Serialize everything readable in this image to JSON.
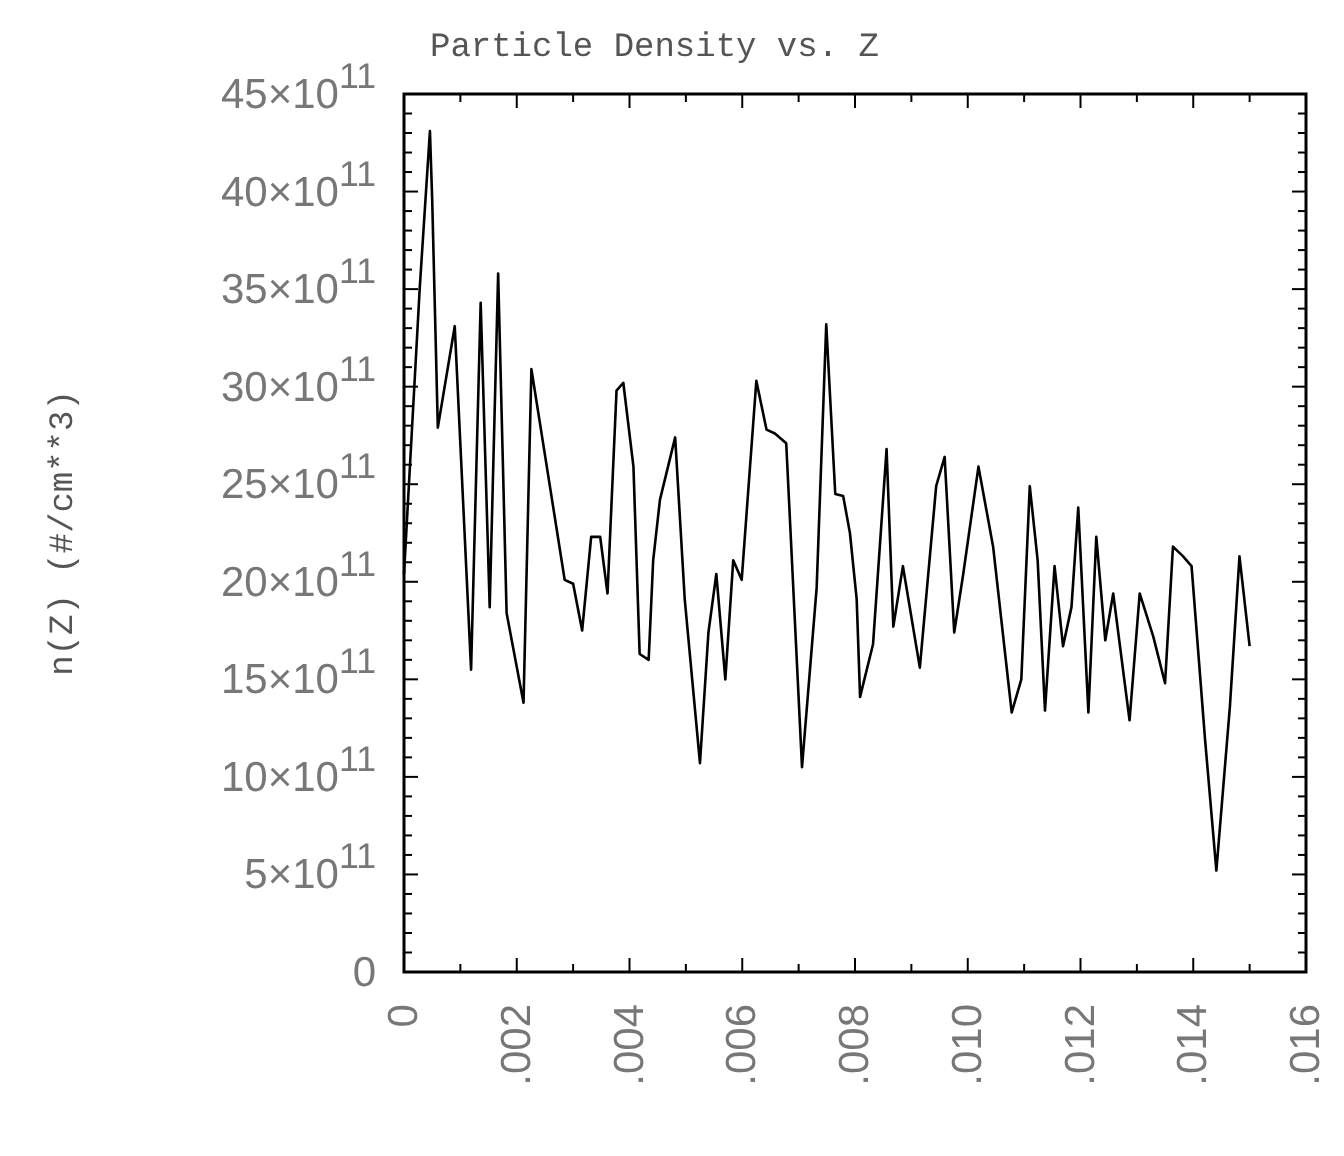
{
  "chart_data": {
    "type": "line",
    "title": "Particle Density vs. Z",
    "ylabel": "n(Z)  (#/cm**3)",
    "x": [
      0,
      0.00028,
      0.00046,
      0.0005,
      0.0006,
      0.0009,
      0.00119,
      0.00136,
      0.00152,
      0.00167,
      0.00182,
      0.00212,
      0.00226,
      0.00285,
      0.003,
      0.00316,
      0.00332,
      0.00348,
      0.00361,
      0.00377,
      0.00389,
      0.00407,
      0.00418,
      0.00434,
      0.00442,
      0.00454,
      0.00481,
      0.00498,
      0.00525,
      0.0054,
      0.00554,
      0.0057,
      0.00584,
      0.00599,
      0.00625,
      0.00643,
      0.00658,
      0.00678,
      0.00706,
      0.00732,
      0.00749,
      0.00765,
      0.00779,
      0.00791,
      0.00803,
      0.00809,
      0.00832,
      0.00856,
      0.00868,
      0.00885,
      0.00915,
      0.00944,
      0.00959,
      0.00976,
      0.00992,
      0.01019,
      0.01045,
      0.01078,
      0.01095,
      0.0111,
      0.01124,
      0.01137,
      0.01154,
      0.01169,
      0.01184,
      0.01196,
      0.01214,
      0.01228,
      0.01244,
      0.01258,
      0.01287,
      0.01305,
      0.01329,
      0.0135,
      0.01364,
      0.01382,
      0.01397,
      0.01421,
      0.01441,
      0.01465,
      0.01482,
      0.015
    ],
    "series": [
      {
        "color": "#000000",
        "values": [
          2040000000000.0,
          3510000000000.0,
          4310000000000.0,
          3960000000000.0,
          2790000000000.0,
          3310000000000.0,
          1550000000000.0,
          3430000000000.0,
          1870000000000.0,
          3580000000000.0,
          1840000000000.0,
          1380000000000.0,
          3090000000000.0,
          2010000000000.0,
          1990000000000.0,
          1750000000000.0,
          2230000000000.0,
          2230000000000.0,
          1940000000000.0,
          2980000000000.0,
          3020000000000.0,
          2590000000000.0,
          1630000000000.0,
          1600000000000.0,
          2110000000000.0,
          2420000000000.0,
          2740000000000.0,
          1910000000000.0,
          1070000000000.0,
          1740000000000.0,
          2040000000000.0,
          1500000000000.0,
          2110000000000.0,
          2010000000000.0,
          3030000000000.0,
          2780000000000.0,
          2760000000000.0,
          2710000000000.0,
          1050000000000.0,
          1970000000000.0,
          3320000000000.0,
          2450000000000.0,
          2440000000000.0,
          2250000000000.0,
          1910000000000.0,
          1410000000000.0,
          1680000000000.0,
          2680000000000.0,
          1770000000000.0,
          2080000000000.0,
          1560000000000.0,
          2490000000000.0,
          2640000000000.0,
          1740000000000.0,
          2040000000000.0,
          2590000000000.0,
          2180000000000.0,
          1330000000000.0,
          1500000000000.0,
          2490000000000.0,
          2110000000000.0,
          1340000000000.0,
          2080000000000.0,
          1670000000000.0,
          1870000000000.0,
          2380000000000.0,
          1330000000000.0,
          2230000000000.0,
          1700000000000.0,
          1940000000000.0,
          1290000000000.0,
          1940000000000.0,
          1720000000000.0,
          1480000000000.0,
          2180000000000.0,
          2130000000000.0,
          2080000000000.0,
          1190000000000.0,
          520000000000.0,
          1360000000000.0,
          2130000000000.0,
          1670000000000.0
        ]
      }
    ],
    "xlim": [
      0,
      0.016
    ],
    "xticks": [
      0,
      {
        "value": 0.001,
        "label": null
      },
      {
        "value": 0.002,
        "label": ".002"
      },
      {
        "value": 0.003,
        "label": null
      },
      {
        "value": 0.004,
        "label": ".004"
      },
      {
        "value": 0.005,
        "label": null
      },
      {
        "value": 0.006,
        "label": ".006"
      },
      {
        "value": 0.007,
        "label": null
      },
      {
        "value": 0.008,
        "label": ".008"
      },
      {
        "value": 0.009,
        "label": null
      },
      {
        "value": 0.01,
        "label": ".010"
      },
      {
        "value": 0.011,
        "label": null
      },
      {
        "value": 0.012,
        "label": ".012"
      },
      {
        "value": 0.013,
        "label": null
      },
      {
        "value": 0.014,
        "label": ".014"
      },
      {
        "value": 0.015,
        "label": null
      },
      {
        "value": 0.016,
        "label": ".016"
      }
    ],
    "ylim": [
      0,
      4500000000000.0
    ],
    "yticks": [
      0,
      {
        "value": 100000000000.0,
        "label": null
      },
      {
        "value": 200000000000.0,
        "label": null
      },
      {
        "value": 300000000000.0,
        "label": null
      },
      {
        "value": 400000000000.0,
        "label": null
      },
      {
        "value": 500000000000.0,
        "label": "5×10$^{11}$"
      },
      {
        "value": 600000000000.0,
        "label": null
      },
      {
        "value": 700000000000.0,
        "label": null
      },
      {
        "value": 800000000000.0,
        "label": null
      },
      {
        "value": 900000000000.0,
        "label": null
      },
      {
        "value": 1000000000000.0,
        "label": "10×10$^{11}$"
      },
      {
        "value": 1100000000000.0,
        "label": null
      },
      {
        "value": 1200000000000.0,
        "label": null
      },
      {
        "value": 1300000000000.0,
        "label": null
      },
      {
        "value": 1400000000000.0,
        "label": null
      },
      {
        "value": 1500000000000.0,
        "label": "15×10$^{11}$"
      },
      {
        "value": 1600000000000.0,
        "label": null
      },
      {
        "value": 1700000000000.0,
        "label": null
      },
      {
        "value": 1800000000000.0,
        "label": null
      },
      {
        "value": 1900000000000.0,
        "label": null
      },
      {
        "value": 2000000000000.0,
        "label": "20×10$^{11}$"
      },
      {
        "value": 2100000000000.0,
        "label": null
      },
      {
        "value": 2200000000000.0,
        "label": null
      },
      {
        "value": 2300000000000.0,
        "label": null
      },
      {
        "value": 2400000000000.0,
        "label": null
      },
      {
        "value": 2500000000000.0,
        "label": "25×10$^{11}$"
      },
      {
        "value": 2600000000000.0,
        "label": null
      },
      {
        "value": 2700000000000.0,
        "label": null
      },
      {
        "value": 2800000000000.0,
        "label": null
      },
      {
        "value": 2900000000000.0,
        "label": null
      },
      {
        "value": 3000000000000.0,
        "label": "30×10$^{11}$"
      },
      {
        "value": 3100000000000.0,
        "label": null
      },
      {
        "value": 3200000000000.0,
        "label": null
      },
      {
        "value": 3300000000000.0,
        "label": null
      },
      {
        "value": 3400000000000.0,
        "label": null
      },
      {
        "value": 3500000000000.0,
        "label": "35×10$^{11}$"
      },
      {
        "value": 3600000000000.0,
        "label": null
      },
      {
        "value": 3700000000000.0,
        "label": null
      },
      {
        "value": 3800000000000.0,
        "label": null
      },
      {
        "value": 3900000000000.0,
        "label": null
      },
      {
        "value": 4000000000000.0,
        "label": "40×10$^{11}$"
      },
      {
        "value": 4100000000000.0,
        "label": null
      },
      {
        "value": 4200000000000.0,
        "label": null
      },
      {
        "value": 4300000000000.0,
        "label": null
      },
      {
        "value": 4400000000000.0,
        "label": null
      },
      {
        "value": 4500000000000.0,
        "label": "45×10$^{11}$"
      }
    ]
  }
}
